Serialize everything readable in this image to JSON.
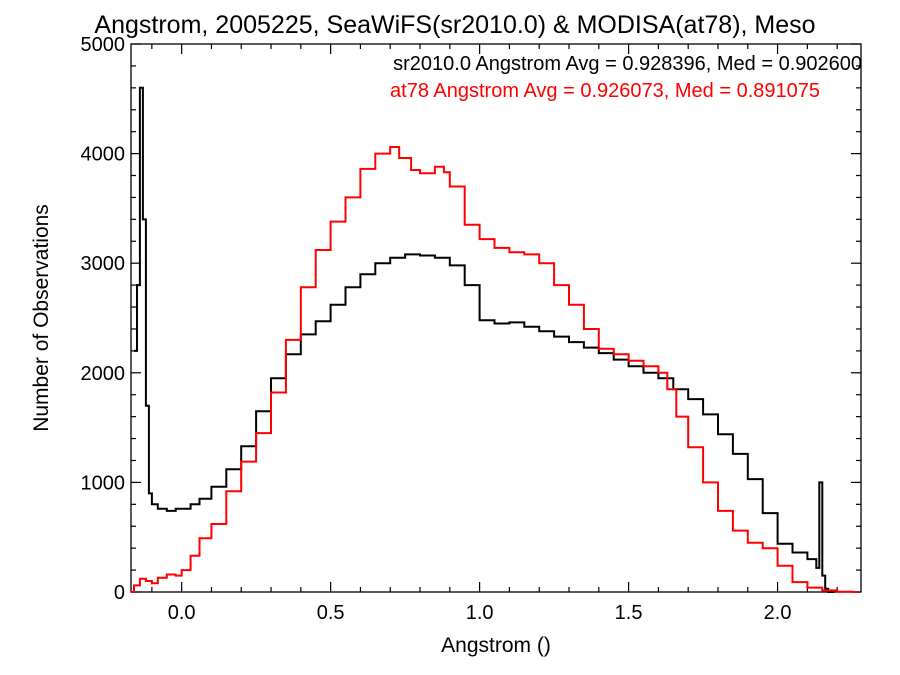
{
  "chart_data": {
    "type": "line",
    "title": "Angstrom, 2005225, SeaWiFS(sr2010.0) & MODISA(at78), Meso",
    "xlabel": "Angstrom ()",
    "ylabel": "Number of Observations",
    "xlim": [
      -0.17,
      2.28
    ],
    "ylim": [
      0,
      5000
    ],
    "x_ticks": [
      0.0,
      0.5,
      1.0,
      1.5,
      2.0
    ],
    "x_tick_labels": [
      "0.0",
      "0.5",
      "1.0",
      "1.5",
      "2.0"
    ],
    "y_ticks": [
      0,
      1000,
      2000,
      3000,
      4000,
      5000
    ],
    "y_tick_labels": [
      "0",
      "1000",
      "2000",
      "3000",
      "4000",
      "5000"
    ],
    "grid": false,
    "annotations": [
      "sr2010.0 Angstrom Avg = 0.928396, Med = 0.902600",
      "at78 Angstrom Avg = 0.926073, Med = 0.891075"
    ],
    "series": [
      {
        "color": "#000000",
        "step": true,
        "points": [
          [
            -0.16,
            2200
          ],
          [
            -0.15,
            2800
          ],
          [
            -0.14,
            4600
          ],
          [
            -0.13,
            3400
          ],
          [
            -0.12,
            1700
          ],
          [
            -0.11,
            900
          ],
          [
            -0.1,
            800
          ],
          [
            -0.08,
            760
          ],
          [
            -0.05,
            740
          ],
          [
            -0.02,
            760
          ],
          [
            0.0,
            760
          ],
          [
            0.03,
            800
          ],
          [
            0.06,
            850
          ],
          [
            0.1,
            960
          ],
          [
            0.15,
            1120
          ],
          [
            0.2,
            1330
          ],
          [
            0.25,
            1650
          ],
          [
            0.3,
            1950
          ],
          [
            0.35,
            2170
          ],
          [
            0.4,
            2350
          ],
          [
            0.45,
            2470
          ],
          [
            0.5,
            2620
          ],
          [
            0.55,
            2780
          ],
          [
            0.6,
            2900
          ],
          [
            0.65,
            3000
          ],
          [
            0.7,
            3050
          ],
          [
            0.75,
            3080
          ],
          [
            0.8,
            3070
          ],
          [
            0.85,
            3050
          ],
          [
            0.9,
            2980
          ],
          [
            0.95,
            2800
          ],
          [
            1.0,
            2480
          ],
          [
            1.05,
            2450
          ],
          [
            1.1,
            2460
          ],
          [
            1.15,
            2420
          ],
          [
            1.2,
            2380
          ],
          [
            1.25,
            2330
          ],
          [
            1.3,
            2280
          ],
          [
            1.35,
            2230
          ],
          [
            1.4,
            2180
          ],
          [
            1.45,
            2120
          ],
          [
            1.5,
            2060
          ],
          [
            1.55,
            2000
          ],
          [
            1.6,
            1950
          ],
          [
            1.65,
            1850
          ],
          [
            1.7,
            1760
          ],
          [
            1.75,
            1620
          ],
          [
            1.8,
            1440
          ],
          [
            1.85,
            1260
          ],
          [
            1.9,
            1030
          ],
          [
            1.95,
            720
          ],
          [
            2.0,
            440
          ],
          [
            2.05,
            360
          ],
          [
            2.1,
            300
          ],
          [
            2.13,
            220
          ],
          [
            2.14,
            1000
          ],
          [
            2.15,
            150
          ],
          [
            2.16,
            30
          ],
          [
            2.17,
            0
          ]
        ]
      },
      {
        "color": "#ff0000",
        "step": true,
        "points": [
          [
            -0.17,
            0
          ],
          [
            -0.16,
            60
          ],
          [
            -0.14,
            120
          ],
          [
            -0.12,
            100
          ],
          [
            -0.1,
            80
          ],
          [
            -0.08,
            130
          ],
          [
            -0.05,
            160
          ],
          [
            -0.02,
            150
          ],
          [
            0.0,
            200
          ],
          [
            0.03,
            330
          ],
          [
            0.06,
            490
          ],
          [
            0.1,
            620
          ],
          [
            0.15,
            920
          ],
          [
            0.2,
            1190
          ],
          [
            0.25,
            1450
          ],
          [
            0.3,
            1820
          ],
          [
            0.35,
            2300
          ],
          [
            0.4,
            2780
          ],
          [
            0.45,
            3120
          ],
          [
            0.5,
            3380
          ],
          [
            0.55,
            3600
          ],
          [
            0.6,
            3860
          ],
          [
            0.65,
            4000
          ],
          [
            0.7,
            4060
          ],
          [
            0.73,
            3960
          ],
          [
            0.77,
            3850
          ],
          [
            0.8,
            3820
          ],
          [
            0.85,
            3880
          ],
          [
            0.88,
            3830
          ],
          [
            0.9,
            3700
          ],
          [
            0.95,
            3350
          ],
          [
            1.0,
            3220
          ],
          [
            1.05,
            3140
          ],
          [
            1.1,
            3100
          ],
          [
            1.15,
            3080
          ],
          [
            1.2,
            3000
          ],
          [
            1.25,
            2800
          ],
          [
            1.3,
            2620
          ],
          [
            1.35,
            2400
          ],
          [
            1.4,
            2220
          ],
          [
            1.45,
            2170
          ],
          [
            1.5,
            2110
          ],
          [
            1.55,
            2060
          ],
          [
            1.6,
            2000
          ],
          [
            1.63,
            1850
          ],
          [
            1.66,
            1600
          ],
          [
            1.7,
            1320
          ],
          [
            1.75,
            1000
          ],
          [
            1.8,
            740
          ],
          [
            1.85,
            560
          ],
          [
            1.9,
            450
          ],
          [
            1.95,
            400
          ],
          [
            2.0,
            240
          ],
          [
            2.05,
            90
          ],
          [
            2.1,
            40
          ],
          [
            2.15,
            15
          ],
          [
            2.2,
            3
          ],
          [
            2.25,
            0
          ]
        ]
      }
    ]
  }
}
